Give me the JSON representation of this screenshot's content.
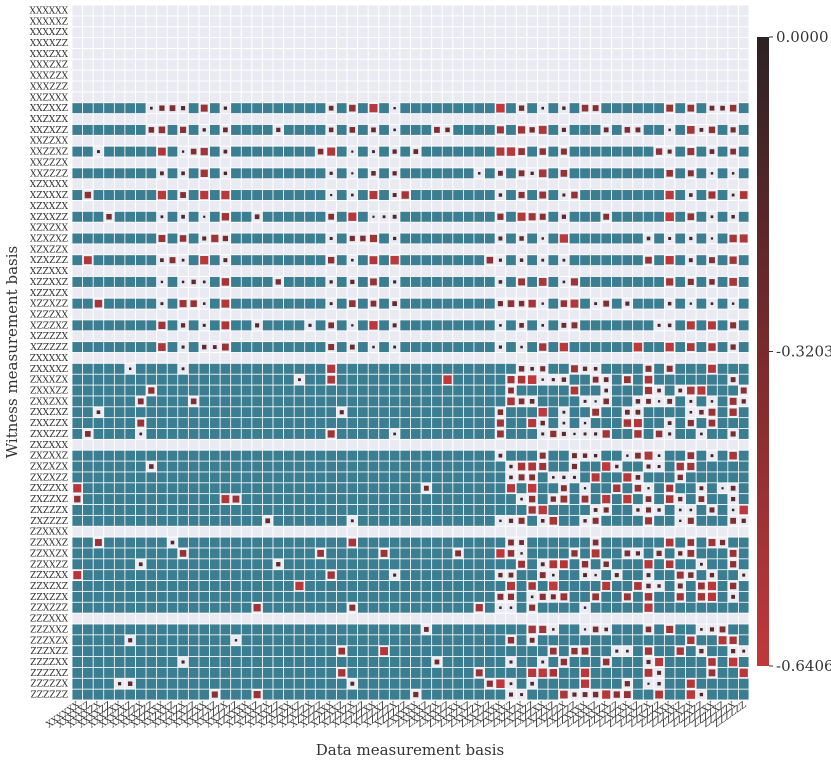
{
  "chart_data": {
    "type": "heatmap",
    "title": "",
    "xlabel": "Data measurement basis",
    "ylabel": "Witness measurement basis",
    "row_labels": [
      "XXXXXX",
      "XXXXXZ",
      "XXXXZX",
      "XXXXZZ",
      "XXXZXX",
      "XXXZXZ",
      "XXXZZX",
      "XXXZZZ",
      "XXZXXX",
      "XXZXXZ",
      "XXZXZX",
      "XXZXZZ",
      "XXZZXX",
      "XXZZXZ",
      "XXZZZX",
      "XXZZZZ",
      "XZXXXX",
      "XZXXXZ",
      "XZXXZX",
      "XZXXZZ",
      "XZXZXX",
      "XZXZXZ",
      "XZXZZX",
      "XZXZZZ",
      "XZZXXX",
      "XZZXXZ",
      "XZZXZX",
      "XZZXZZ",
      "XZZZXX",
      "XZZZXZ",
      "XZZZZX",
      "XZZZZZ",
      "ZXXXXX",
      "ZXXXXZ",
      "ZXXXZX",
      "ZXXXZZ",
      "ZXXZXX",
      "ZXXZXZ",
      "ZXXZZX",
      "ZXXZZZ",
      "ZXZXXX",
      "ZXZXXZ",
      "ZXZXZX",
      "ZXZXZZ",
      "ZXZZXX",
      "ZXZZXZ",
      "ZXZZZX",
      "ZXZZZZ",
      "ZZXXXX",
      "ZZXXXZ",
      "ZZXXZX",
      "ZZXXZZ",
      "ZZXZXX",
      "ZZXZXZ",
      "ZZXZZX",
      "ZZXZZZ",
      "ZZZXXX",
      "ZZZXXZ",
      "ZZZXZX",
      "ZZZXZZ",
      "ZZZZXX",
      "ZZZZXZ",
      "ZZZZZX",
      "ZZZZZZ"
    ],
    "col_labels": [
      "XXXXXX",
      "XXXXXZ",
      "XXXXZX",
      "XXXXZZ",
      "XXXZXX",
      "XXXZXZ",
      "XXXZZX",
      "XXXZZZ",
      "XXZXXX",
      "XXZXXZ",
      "XXZXZX",
      "XXZXZZ",
      "XXZZXX",
      "XXZZXZ",
      "XXZZZX",
      "XXZZZZ",
      "XZXXXX",
      "XZXXXZ",
      "XZXXZX",
      "XZXXZZ",
      "XZXZXX",
      "XZXZXZ",
      "XZXZZX",
      "XZXZZZ",
      "XZZXXX",
      "XZZXXZ",
      "XZZXZX",
      "XZZXZZ",
      "XZZZXX",
      "XZZZXZ",
      "XZZZZX",
      "XZZZZZ",
      "ZXXXXX",
      "ZXXXXZ",
      "ZXXXZX",
      "ZXXXZZ",
      "ZXXZXX",
      "ZXXZXZ",
      "ZXXZZX",
      "ZXXZZZ",
      "ZXZXXX",
      "ZXZXXZ",
      "ZXZXZX",
      "ZXZXZZ",
      "ZXZZXX",
      "ZXZZXZ",
      "ZXZZZX",
      "ZXZZZZ",
      "ZZXXXX",
      "ZZXXXZ",
      "ZZXXZX",
      "ZZXXZZ",
      "ZZXZXX",
      "ZZXZXZ",
      "ZZXZZX",
      "ZZXZZZ",
      "ZZZXXX",
      "ZZZXXZ",
      "ZZZXZX",
      "ZZZXZZ",
      "ZZZZXX",
      "ZZZZXZ",
      "ZZZZZX",
      "ZZZZZZ"
    ],
    "value_range": [
      -0.6406,
      0.0
    ],
    "colorbar": {
      "ticks": [
        "0.0000",
        "-0.3203",
        "-0.6406"
      ],
      "placement": "right"
    },
    "colors": {
      "positive": "#3b7d91",
      "negative_high": "#c0393b",
      "negative_low": "#2d2224",
      "background": "#eaeaf2",
      "grid": "#ffffff"
    },
    "encoding": "Square size shows magnitude; teal squares are positive entries, red-to-black squares are negative entries on the colorbar scale; empty rows are zero.",
    "pattern": {
      "rows": [
        {
          "kind": "zero"
        },
        {
          "kind": "zero"
        },
        {
          "kind": "zero"
        },
        {
          "kind": "zero"
        },
        {
          "kind": "zero"
        },
        {
          "kind": "zero"
        },
        {
          "kind": "zero"
        },
        {
          "kind": "zero"
        },
        {
          "kind": "zero"
        },
        {
          "kind": "sparse",
          "g": 1
        },
        {
          "kind": "zero"
        },
        {
          "kind": "sparse",
          "g": 1
        },
        {
          "kind": "zero"
        },
        {
          "kind": "sparse",
          "g": 1
        },
        {
          "kind": "zero"
        },
        {
          "kind": "sparse",
          "g": 1
        },
        {
          "kind": "zero"
        },
        {
          "kind": "sparse",
          "g": 2
        },
        {
          "kind": "zero"
        },
        {
          "kind": "sparse",
          "g": 2
        },
        {
          "kind": "zero"
        },
        {
          "kind": "sparse",
          "g": 2
        },
        {
          "kind": "zero"
        },
        {
          "kind": "sparse",
          "g": 2
        },
        {
          "kind": "zero"
        },
        {
          "kind": "sparse",
          "g": 3
        },
        {
          "kind": "zero"
        },
        {
          "kind": "sparse",
          "g": 3
        },
        {
          "kind": "zero"
        },
        {
          "kind": "sparse",
          "g": 3
        },
        {
          "kind": "zero"
        },
        {
          "kind": "sparse",
          "g": 3
        },
        {
          "kind": "zero"
        },
        {
          "kind": "dense",
          "g": 4
        },
        {
          "kind": "dense",
          "g": 4
        },
        {
          "kind": "dense",
          "g": 4
        },
        {
          "kind": "dense",
          "g": 4
        },
        {
          "kind": "dense",
          "g": 4
        },
        {
          "kind": "dense",
          "g": 4
        },
        {
          "kind": "dense",
          "g": 4
        },
        {
          "kind": "zero"
        },
        {
          "kind": "dense",
          "g": 5
        },
        {
          "kind": "dense",
          "g": 5
        },
        {
          "kind": "dense",
          "g": 5
        },
        {
          "kind": "dense",
          "g": 5
        },
        {
          "kind": "dense",
          "g": 5
        },
        {
          "kind": "dense",
          "g": 5
        },
        {
          "kind": "dense",
          "g": 5
        },
        {
          "kind": "zero"
        },
        {
          "kind": "dense",
          "g": 6
        },
        {
          "kind": "dense",
          "g": 6
        },
        {
          "kind": "dense",
          "g": 6
        },
        {
          "kind": "dense",
          "g": 6
        },
        {
          "kind": "dense",
          "g": 6
        },
        {
          "kind": "dense",
          "g": 6
        },
        {
          "kind": "dense",
          "g": 6
        },
        {
          "kind": "zero"
        },
        {
          "kind": "dense",
          "g": 7
        },
        {
          "kind": "dense",
          "g": 7
        },
        {
          "kind": "dense",
          "g": 7
        },
        {
          "kind": "dense",
          "g": 7
        },
        {
          "kind": "dense",
          "g": 7
        },
        {
          "kind": "dense",
          "g": 7
        },
        {
          "kind": "dense",
          "g": 7
        }
      ]
    }
  }
}
